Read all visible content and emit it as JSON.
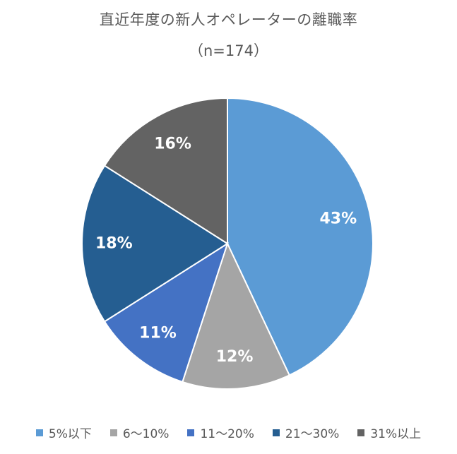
{
  "chart_data": {
    "type": "pie",
    "title": "直近年度の新人オペレーターの離職率",
    "subtitle": "（n=174）",
    "categories": [
      "5%以下",
      "6～10%",
      "11～20%",
      "21～30%",
      "31%以上"
    ],
    "values": [
      43,
      12,
      11,
      18,
      16
    ],
    "data_labels": [
      "43%",
      "12%",
      "11%",
      "18%",
      "16%"
    ],
    "colors": [
      "#5b9bd5",
      "#a5a5a5",
      "#4472c4",
      "#255e91",
      "#636363"
    ],
    "start_angle": "12 o'clock",
    "direction": "clockwise",
    "legend_position": "bottom"
  }
}
